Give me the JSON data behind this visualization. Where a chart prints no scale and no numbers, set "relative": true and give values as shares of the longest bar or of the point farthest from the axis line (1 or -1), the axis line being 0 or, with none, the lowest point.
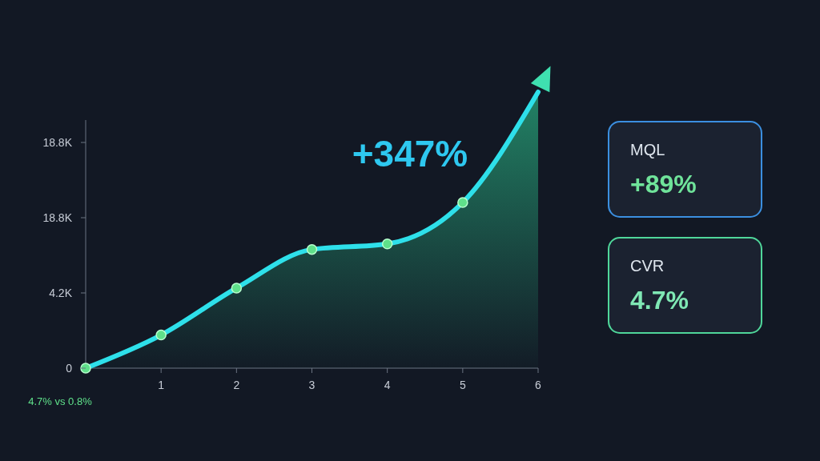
{
  "chart_data": [
    {
      "type": "line",
      "x": [
        0,
        1,
        2,
        3,
        4,
        5,
        6
      ],
      "series": [
        {
          "color": "#2ee0ea",
          "values": [
            0,
            0.12,
            0.29,
            0.43,
            0.45,
            0.6,
            1
          ]
        }
      ],
      "relative": true,
      "xlim": [
        0,
        6
      ],
      "xticks": [
        1,
        2,
        3,
        4,
        5,
        6
      ],
      "marker": "circle",
      "annotations": [
        "+347%",
        "4.7% vs 0.8%",
        "0",
        "4.2K",
        "18.8K",
        "18.8K"
      ]
    },
    {
      "type": "other",
      "annotations": [
        "MQL",
        "+89%",
        "CVR",
        "4.7%"
      ],
      "colors": [
        "#3b8fe0",
        "#4fd69a"
      ]
    }
  ]
}
